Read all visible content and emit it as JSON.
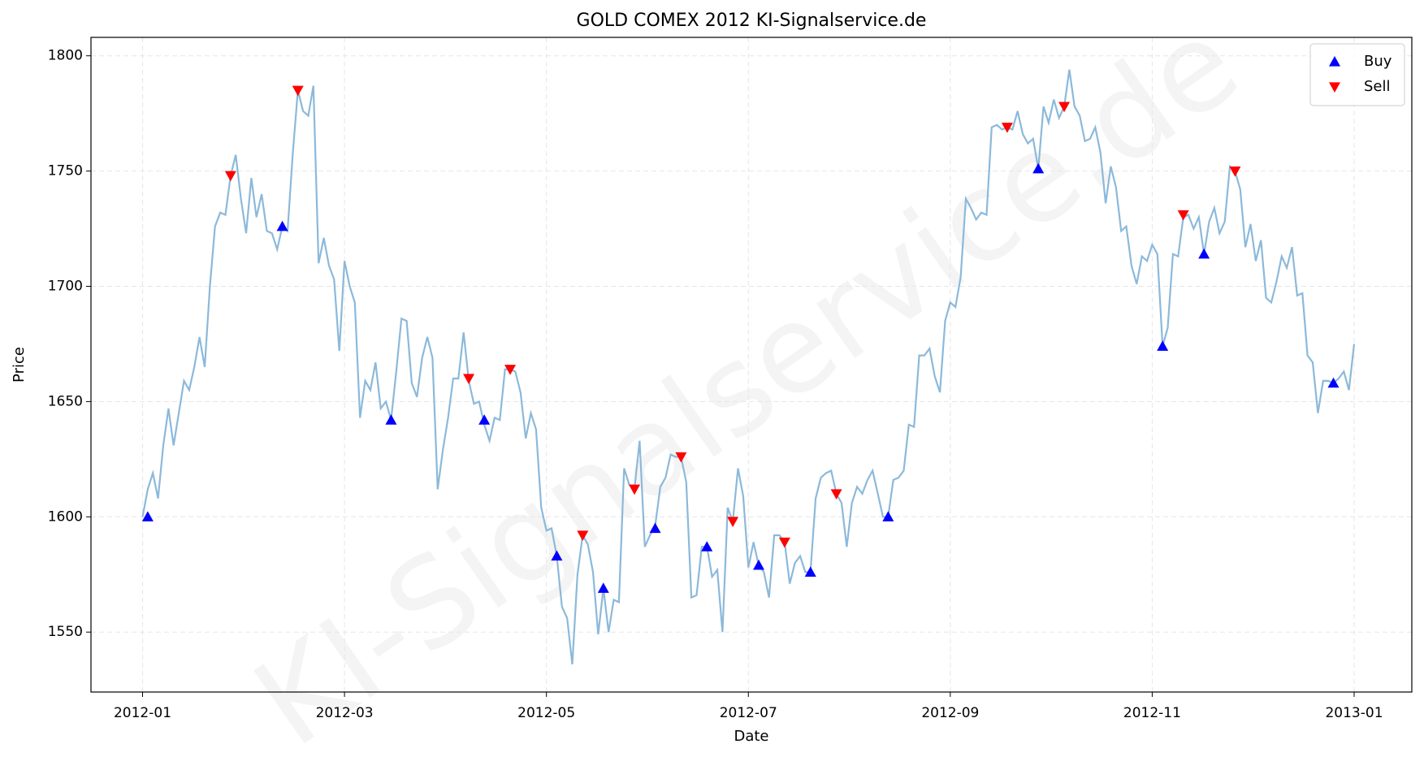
{
  "chart_data": {
    "type": "line",
    "title": "GOLD COMEX 2012 KI-Signalservice.de",
    "xlabel": "Date",
    "ylabel": "Price",
    "watermark": "KI-Signalservice.de",
    "ylim": [
      1524,
      1808
    ],
    "yticks": [
      1550,
      1600,
      1650,
      1700,
      1750,
      1800
    ],
    "xticks": [
      "2012-01",
      "2012-03",
      "2012-05",
      "2012-07",
      "2012-09",
      "2012-11",
      "2013-01"
    ],
    "grid": true,
    "legend": "upper right",
    "series": [
      {
        "color": "#8cb9da",
        "values": [
          1600,
          1612,
          1619,
          1608,
          1631,
          1647,
          1631,
          1645,
          1659,
          1655,
          1665,
          1678,
          1665,
          1700,
          1726,
          1732,
          1731,
          1748,
          1757,
          1738,
          1723,
          1747,
          1730,
          1740,
          1724,
          1723,
          1716,
          1726,
          1724,
          1757,
          1785,
          1776,
          1774,
          1787,
          1710,
          1721,
          1709,
          1703,
          1672,
          1711,
          1700,
          1693,
          1643,
          1659,
          1655,
          1667,
          1647,
          1650,
          1642,
          1663,
          1686,
          1685,
          1658,
          1652,
          1669,
          1678,
          1669,
          1612,
          1629,
          1643,
          1660,
          1660,
          1680,
          1659,
          1649,
          1650,
          1640,
          1633,
          1643,
          1642,
          1664,
          1664,
          1663,
          1654,
          1634,
          1645,
          1638,
          1604,
          1594,
          1595,
          1583,
          1561,
          1556,
          1536,
          1575,
          1592,
          1588,
          1576,
          1549,
          1569,
          1550,
          1564,
          1563,
          1621,
          1614,
          1612,
          1633,
          1587,
          1592,
          1596,
          1613,
          1617,
          1627,
          1626,
          1626,
          1615,
          1565,
          1566,
          1587,
          1587,
          1574,
          1577,
          1550,
          1604,
          1598,
          1621,
          1609,
          1578,
          1589,
          1579,
          1576,
          1565,
          1592,
          1592,
          1589,
          1571,
          1580,
          1583,
          1576,
          1576,
          1608,
          1617,
          1619,
          1620,
          1610,
          1606,
          1587,
          1606,
          1613,
          1610,
          1616,
          1620,
          1610,
          1600,
          1600,
          1616,
          1617,
          1620,
          1640,
          1639,
          1670,
          1670,
          1673,
          1661,
          1654,
          1685,
          1693,
          1691,
          1704,
          1738,
          1734,
          1729,
          1732,
          1731,
          1769,
          1770,
          1768,
          1769,
          1768,
          1776,
          1766,
          1762,
          1764,
          1751,
          1778,
          1771,
          1781,
          1773,
          1778,
          1794,
          1778,
          1774,
          1763,
          1764,
          1769,
          1758,
          1736,
          1752,
          1743,
          1724,
          1726,
          1709,
          1701,
          1713,
          1711,
          1718,
          1714,
          1674,
          1682,
          1714,
          1713,
          1730,
          1731,
          1725,
          1730,
          1714,
          1728,
          1734,
          1723,
          1728,
          1752,
          1750,
          1742,
          1717,
          1727,
          1711,
          1720,
          1695,
          1693,
          1702,
          1713,
          1708,
          1717,
          1696,
          1697,
          1670,
          1667,
          1645,
          1659,
          1659,
          1658,
          1660,
          1663,
          1655,
          1675
        ]
      },
      {
        "name": "Buy",
        "color": "blue",
        "marker": "^",
        "values": [
          null,
          1600,
          null,
          null,
          null,
          null,
          null,
          null,
          null,
          null,
          null,
          null,
          null,
          null,
          null,
          null,
          null,
          null,
          null,
          null,
          null,
          null,
          null,
          null,
          null,
          null,
          null,
          1726,
          null,
          null,
          null,
          null,
          null,
          null,
          null,
          null,
          null,
          null,
          null,
          null,
          null,
          null,
          null,
          null,
          null,
          null,
          null,
          null,
          1642,
          null,
          null,
          null,
          null,
          null,
          null,
          null,
          null,
          null,
          null,
          null,
          null,
          null,
          null,
          null,
          null,
          null,
          1642,
          null,
          null,
          null,
          null,
          null,
          null,
          null,
          null,
          null,
          null,
          null,
          null,
          null,
          1583,
          null,
          null,
          null,
          null,
          null,
          null,
          null,
          null,
          1569,
          null,
          null,
          null,
          null,
          null,
          null,
          null,
          null,
          null,
          1595,
          null,
          null,
          null,
          null,
          null,
          null,
          null,
          null,
          null,
          1587,
          null,
          null,
          null,
          null,
          null,
          null,
          null,
          null,
          null,
          1579,
          null,
          null,
          null,
          null,
          null,
          null,
          null,
          null,
          null,
          1576,
          null,
          null,
          null,
          null,
          null,
          null,
          null,
          null,
          null,
          null,
          null,
          null,
          null,
          null,
          1600,
          null,
          null,
          null,
          null,
          null,
          null,
          null,
          null,
          null,
          null,
          null,
          null,
          null,
          null,
          null,
          null,
          null,
          null,
          null,
          null,
          null,
          null,
          null,
          null,
          null,
          null,
          null,
          null,
          1751,
          null,
          null,
          null,
          null,
          null,
          null,
          null,
          null,
          null,
          null,
          null,
          null,
          null,
          null,
          null,
          null,
          null,
          null,
          null,
          null,
          null,
          null,
          null,
          1674,
          null,
          null,
          null,
          null,
          null,
          null,
          null,
          1714,
          null,
          null,
          null,
          null,
          null,
          null,
          null,
          null,
          null,
          null,
          null,
          null,
          null,
          null,
          null,
          null,
          null,
          null,
          null,
          null,
          null,
          null,
          null,
          null,
          1658,
          null,
          null,
          null,
          null
        ]
      },
      {
        "name": "Sell",
        "color": "red",
        "marker": "v",
        "values": [
          null,
          null,
          null,
          null,
          null,
          null,
          null,
          null,
          null,
          null,
          null,
          null,
          null,
          null,
          null,
          null,
          null,
          1748,
          null,
          null,
          null,
          null,
          null,
          null,
          null,
          null,
          null,
          null,
          null,
          null,
          1785,
          null,
          null,
          null,
          null,
          null,
          null,
          null,
          null,
          null,
          null,
          null,
          null,
          null,
          null,
          null,
          null,
          null,
          null,
          null,
          null,
          null,
          null,
          null,
          null,
          null,
          null,
          null,
          null,
          null,
          null,
          null,
          null,
          1660,
          null,
          null,
          null,
          null,
          null,
          null,
          null,
          1664,
          null,
          null,
          null,
          null,
          null,
          null,
          null,
          null,
          null,
          null,
          null,
          null,
          null,
          1592,
          null,
          null,
          null,
          null,
          null,
          null,
          null,
          null,
          null,
          1612,
          null,
          null,
          null,
          null,
          null,
          null,
          null,
          null,
          1626,
          null,
          null,
          null,
          null,
          null,
          null,
          null,
          null,
          null,
          1598,
          null,
          null,
          null,
          null,
          null,
          null,
          null,
          null,
          null,
          1589,
          null,
          null,
          null,
          null,
          null,
          null,
          null,
          null,
          null,
          1610,
          null,
          null,
          null,
          null,
          null,
          null,
          null,
          null,
          null,
          null,
          null,
          null,
          null,
          null,
          null,
          null,
          null,
          null,
          null,
          null,
          null,
          null,
          null,
          null,
          null,
          null,
          null,
          null,
          null,
          null,
          null,
          null,
          1769,
          null,
          null,
          null,
          null,
          null,
          null,
          null,
          null,
          null,
          null,
          1778,
          null,
          null,
          null,
          null,
          null,
          null,
          null,
          null,
          null,
          null,
          null,
          null,
          null,
          null,
          null,
          null,
          null,
          null,
          null,
          null,
          null,
          null,
          1731,
          null,
          null,
          null,
          null,
          null,
          null,
          null,
          null,
          null,
          1750,
          null,
          null,
          null,
          null,
          null,
          null,
          null,
          null,
          null,
          null,
          null,
          null,
          null,
          null,
          null,
          null,
          null,
          null,
          null,
          null,
          null,
          null,
          null
        ]
      }
    ]
  }
}
